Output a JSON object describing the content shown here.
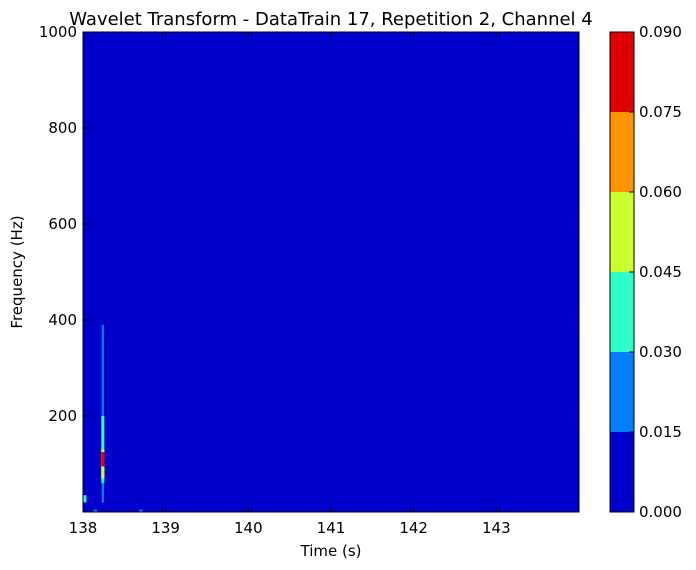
{
  "chart_data": {
    "type": "heatmap",
    "title": "Wavelet Transform - DataTrain 17, Repetition 2, Channel 4",
    "xlabel": "Time (s)",
    "ylabel": "Frequency (Hz)",
    "xlim": [
      138,
      144
    ],
    "ylim": [
      0,
      1000
    ],
    "x_ticks": [
      138,
      139,
      140,
      141,
      142,
      143
    ],
    "x_tick_labels": [
      "138",
      "139",
      "140",
      "141",
      "142",
      "143"
    ],
    "y_ticks": [
      200,
      400,
      600,
      800,
      1000
    ],
    "y_tick_labels": [
      "200",
      "400",
      "600",
      "800",
      "1000"
    ],
    "grid": false,
    "background_value": 0.0,
    "colorbar": {
      "levels": [
        0.0,
        0.015,
        0.03,
        0.045,
        0.06,
        0.075,
        0.09
      ],
      "tick_labels": [
        "0.000",
        "0.015",
        "0.030",
        "0.045",
        "0.060",
        "0.075",
        "0.090"
      ],
      "colors": [
        "#0000cc",
        "#0080ff",
        "#2effc8",
        "#c8ff2e",
        "#ff9400",
        "#e00000"
      ],
      "placement": "right"
    },
    "features": [
      {
        "t": 138.24,
        "f0": 20,
        "f1": 390,
        "value": 0.02
      },
      {
        "t": 138.24,
        "f0": 60,
        "f1": 200,
        "value": 0.035
      },
      {
        "t": 138.24,
        "f0": 70,
        "f1": 130,
        "value": 0.05
      },
      {
        "t": 138.24,
        "f0": 95,
        "f1": 125,
        "value": 0.08
      },
      {
        "t": 138.02,
        "f0": 20,
        "f1": 35,
        "value": 0.035
      },
      {
        "t": 138.15,
        "f0": 0,
        "f1": 5,
        "value": 0.02
      },
      {
        "t": 138.7,
        "f0": 0,
        "f1": 5,
        "value": 0.02
      }
    ]
  }
}
